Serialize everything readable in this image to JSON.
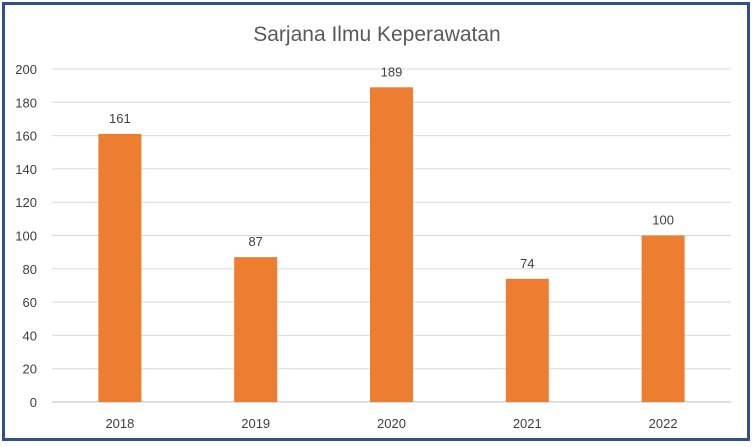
{
  "chart_data": {
    "type": "bar",
    "title": "Sarjana Ilmu Keperawatan",
    "categories": [
      "2018",
      "2019",
      "2020",
      "2021",
      "2022"
    ],
    "values": [
      161,
      87,
      189,
      74,
      100
    ],
    "ylim": [
      0,
      200
    ],
    "yticks": [
      0,
      20,
      40,
      60,
      80,
      100,
      120,
      140,
      160,
      180,
      200
    ],
    "grid": true,
    "legend": "none",
    "data_labels": true,
    "bar_color": "#ed7d31",
    "border_color": "#2f4f8f"
  }
}
